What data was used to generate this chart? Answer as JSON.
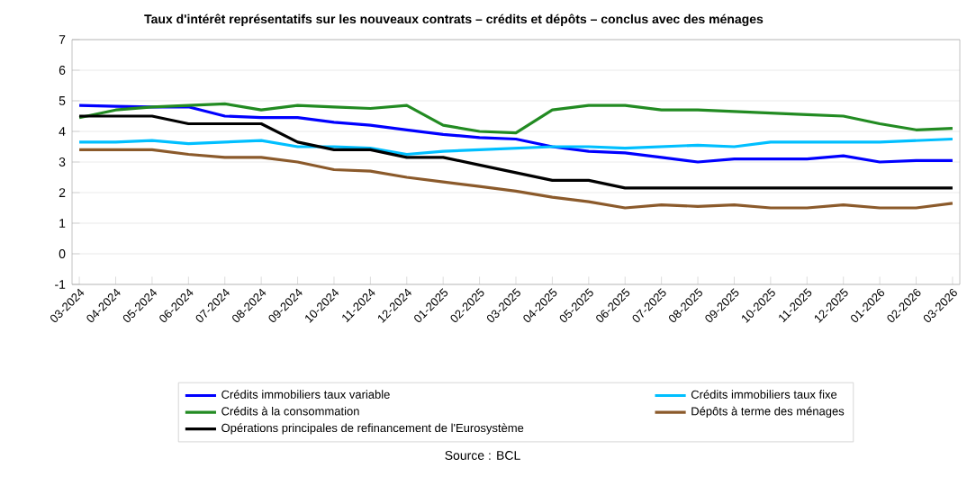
{
  "chart_data": {
    "type": "line",
    "title": "Taux d'intérêt représentatifs sur les nouveaux contrats – crédits et dépôts – conclus avec des ménages",
    "categories": [
      "03-2024",
      "04-2024",
      "05-2024",
      "06-2024",
      "07-2024",
      "08-2024",
      "09-2024",
      "10-2024",
      "11-2024",
      "12-2024",
      "01-2025",
      "02-2025",
      "03-2025",
      "04-2025",
      "05-2025",
      "06-2025",
      "07-2025",
      "08-2025",
      "09-2025",
      "10-2025",
      "11-2025",
      "12-2025",
      "01-2026",
      "02-2026",
      "03-2026"
    ],
    "series": [
      {
        "name": "Crédits immobiliers taux variable",
        "color": "#0000ff",
        "values": [
          4.85,
          4.82,
          4.8,
          4.8,
          4.5,
          4.45,
          4.45,
          4.3,
          4.2,
          4.05,
          3.9,
          3.8,
          3.75,
          3.5,
          3.35,
          3.3,
          3.15,
          3.0,
          3.1,
          3.1,
          3.1,
          3.2,
          3.0,
          3.05,
          3.05
        ]
      },
      {
        "name": "Crédits immobiliers taux fixe",
        "color": "#00bfff",
        "values": [
          3.65,
          3.65,
          3.7,
          3.6,
          3.65,
          3.7,
          3.5,
          3.5,
          3.45,
          3.25,
          3.35,
          3.4,
          3.45,
          3.5,
          3.5,
          3.45,
          3.5,
          3.55,
          3.5,
          3.65,
          3.65,
          3.65,
          3.65,
          3.7,
          3.75
        ]
      },
      {
        "name": "Crédits à la consommation",
        "color": "#228b22",
        "values": [
          4.45,
          4.7,
          4.8,
          4.85,
          4.9,
          4.7,
          4.85,
          4.8,
          4.75,
          4.85,
          4.2,
          4.0,
          3.95,
          4.7,
          4.85,
          4.85,
          4.7,
          4.7,
          4.65,
          4.6,
          4.55,
          4.5,
          4.25,
          4.05,
          4.1
        ]
      },
      {
        "name": "Dépôts à terme des ménages",
        "color": "#8b5a2b",
        "values": [
          3.4,
          3.4,
          3.4,
          3.25,
          3.15,
          3.15,
          3.0,
          2.75,
          2.7,
          2.5,
          2.35,
          2.2,
          2.05,
          1.85,
          1.7,
          1.5,
          1.6,
          1.55,
          1.6,
          1.5,
          1.5,
          1.6,
          1.5,
          1.5,
          1.65
        ]
      },
      {
        "name": "Opérations principales de refinancement de l'Eurosystème",
        "color": "#000000",
        "values": [
          4.5,
          4.5,
          4.5,
          4.25,
          4.25,
          4.25,
          3.65,
          3.4,
          3.4,
          3.15,
          3.15,
          2.9,
          2.65,
          2.4,
          2.4,
          2.15,
          2.15,
          2.15,
          2.15,
          2.15,
          2.15,
          2.15,
          2.15,
          2.15,
          2.15
        ]
      }
    ],
    "ylim": [
      -1,
      7
    ],
    "yticks": [
      -1,
      0,
      1,
      2,
      3,
      4,
      5,
      6,
      7
    ],
    "grid": "y",
    "legend": "bottom",
    "marker": "none",
    "line_style": "solid",
    "annotations": [
      "Source : BCL"
    ]
  }
}
